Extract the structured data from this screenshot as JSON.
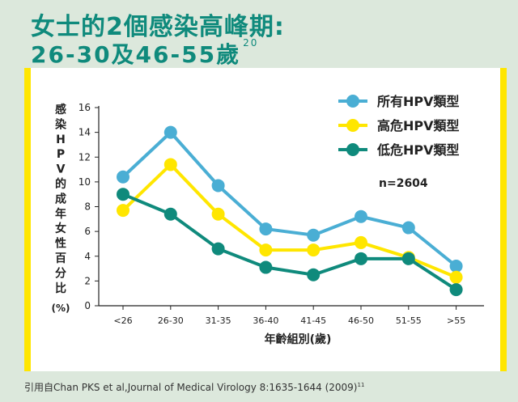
{
  "title": {
    "line1": "女士的2個感染高峰期:",
    "line2": "26-30及46-55歲",
    "line2_sup": "20"
  },
  "citation": {
    "text": "引用自Chan PKS et al,Journal of Medical Virology 8:1635-1644 (2009)",
    "sup": "11"
  },
  "chart_data": {
    "type": "line",
    "categories": [
      "<26",
      "26-30",
      "31-35",
      "36-40",
      "41-45",
      "46-50",
      "51-55",
      ">55"
    ],
    "series": [
      {
        "name": "所有HPV類型",
        "color": "#4aaed4",
        "values": [
          10.4,
          14.0,
          9.7,
          6.2,
          5.7,
          7.2,
          6.3,
          3.2
        ]
      },
      {
        "name": "高危HPV類型",
        "color": "#ffe600",
        "values": [
          7.7,
          11.4,
          7.4,
          4.5,
          4.5,
          5.1,
          3.9,
          2.3
        ]
      },
      {
        "name": "低危HPV類型",
        "color": "#0f8a7c",
        "values": [
          9.0,
          7.4,
          4.6,
          3.1,
          2.5,
          3.8,
          3.8,
          1.3
        ]
      }
    ],
    "ylim": [
      0,
      16
    ],
    "yticks": [
      0,
      2,
      4,
      6,
      8,
      10,
      12,
      14,
      16
    ],
    "ylabel": "感染HPV的成年女性百分比",
    "yunit": "(%)",
    "xlabel": "年齡組別(歲)",
    "annotation": "n=2604",
    "grid": false,
    "legend_position": "top-right"
  }
}
